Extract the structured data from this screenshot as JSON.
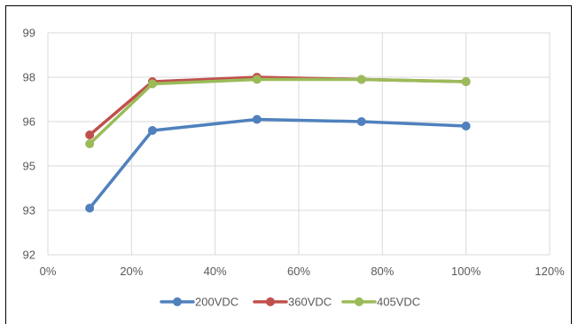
{
  "chart_data": {
    "type": "line",
    "title": "",
    "xlabel": "",
    "ylabel": "",
    "xlim": [
      0,
      1.2
    ],
    "ylim": [
      92,
      99
    ],
    "x_ticks": [
      "0%",
      "20%",
      "40%",
      "60%",
      "80%",
      "100%",
      "120%"
    ],
    "y_ticks": [
      "92",
      "93",
      "95",
      "96",
      "97",
      "98",
      "99"
    ],
    "grid": true,
    "legend_position": "bottom",
    "x": [
      0.1,
      0.25,
      0.5,
      0.75,
      1.0
    ],
    "series": [
      {
        "name": "200VDC",
        "color": "#4f81bd",
        "values": [
          93.1,
          95.8,
          96.1,
          96.0,
          95.9
        ]
      },
      {
        "name": "360VDC",
        "color": "#c0504d",
        "values": [
          95.7,
          97.8,
          98.0,
          97.9,
          97.8
        ]
      },
      {
        "name": "405VDC",
        "color": "#9bbb59",
        "values": [
          95.5,
          97.7,
          97.9,
          97.9,
          97.8
        ]
      }
    ]
  }
}
